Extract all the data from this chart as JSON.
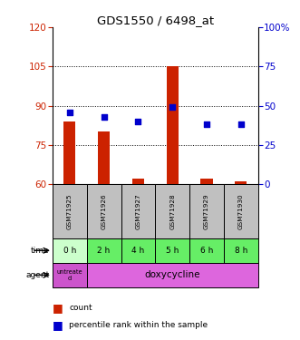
{
  "title": "GDS1550 / 6498_at",
  "samples": [
    "GSM71925",
    "GSM71926",
    "GSM71927",
    "GSM71928",
    "GSM71929",
    "GSM71930"
  ],
  "count_values": [
    84,
    80,
    62,
    105,
    62,
    61
  ],
  "percentile_values": [
    46,
    43,
    40,
    49,
    38,
    38
  ],
  "time_labels": [
    "0 h",
    "2 h",
    "4 h",
    "5 h",
    "6 h",
    "8 h"
  ],
  "ylim_left": [
    60,
    120
  ],
  "ylim_right": [
    0,
    100
  ],
  "yticks_left": [
    60,
    75,
    90,
    105,
    120
  ],
  "yticks_right": [
    0,
    25,
    50,
    75,
    100
  ],
  "bar_color": "#cc2200",
  "square_color": "#0000cc",
  "bg_color": "#ffffff",
  "label_color_left": "#cc2200",
  "label_color_right": "#0000cc",
  "sample_bg": "#c0c0c0",
  "time_bg_untreated": "#ccffcc",
  "time_bg_treated": "#66ee66",
  "agent_bg_untreated": "#cc55cc",
  "agent_bg_treated": "#dd66dd",
  "bar_width": 0.35,
  "square_size": 18
}
